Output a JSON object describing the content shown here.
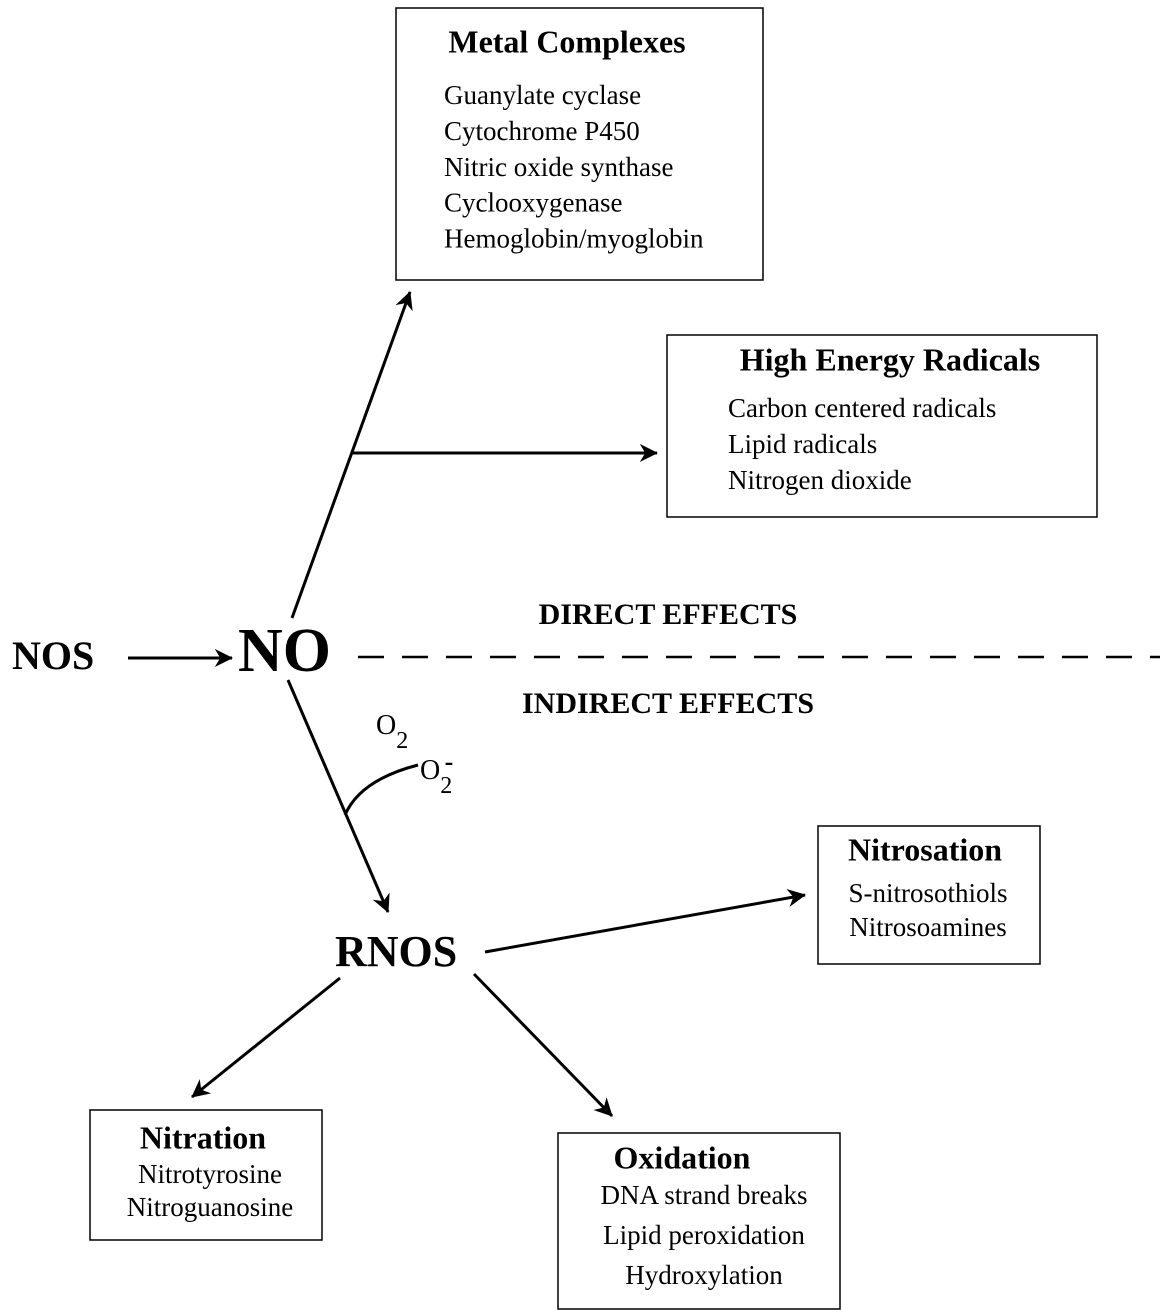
{
  "nodes": {
    "nos": "NOS",
    "no": "NO",
    "rnos": "RNOS"
  },
  "regions": {
    "direct": "DIRECT EFFECTS",
    "indirect": "INDIRECT EFFECTS"
  },
  "reactants": {
    "oxygen": {
      "base": "O",
      "sub": "2"
    },
    "superoxide": {
      "base": "O",
      "sub": "2",
      "sup": "-"
    }
  },
  "boxes": {
    "metal_complexes": {
      "title": "Metal Complexes",
      "items": [
        "Guanylate cyclase",
        "Cytochrome P450",
        "Nitric oxide synthase",
        "Cyclooxygenase",
        "Hemoglobin/myoglobin"
      ]
    },
    "high_energy_radicals": {
      "title": "High Energy Radicals",
      "items": [
        "Carbon centered radicals",
        "Lipid radicals",
        "Nitrogen dioxide"
      ]
    },
    "nitrosation": {
      "title": "Nitrosation",
      "items": [
        "S-nitrosothiols",
        "Nitrosoamines"
      ]
    },
    "nitration": {
      "title": "Nitration",
      "items": [
        "Nitrotyrosine",
        "Nitroguanosine"
      ]
    },
    "oxidation": {
      "title": "Oxidation",
      "items": [
        "DNA strand breaks",
        "Lipid peroxidation",
        "Hydroxylation"
      ]
    }
  }
}
